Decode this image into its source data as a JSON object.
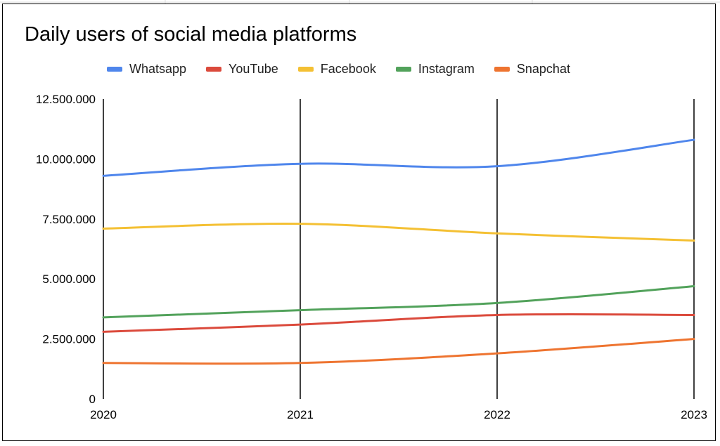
{
  "chart_data": {
    "type": "line",
    "title": "Daily users of social media platforms",
    "categories": [
      "2020",
      "2021",
      "2022",
      "2023"
    ],
    "ylim": [
      0,
      12500000
    ],
    "yticks": [
      0,
      2500000,
      5000000,
      7500000,
      10000000,
      12500000
    ],
    "ytick_labels": [
      "0",
      "2.500.000",
      "5.000.000",
      "7.500.000",
      "10.000.000",
      "12.500.000"
    ],
    "legend_position": "top",
    "smooth": true,
    "series": [
      {
        "name": "Whatsapp",
        "color": "#4f86ec",
        "values": [
          9300000,
          9800000,
          9700000,
          10800000
        ]
      },
      {
        "name": "YouTube",
        "color": "#db4a3c",
        "values": [
          2800000,
          3100000,
          3500000,
          3500000
        ]
      },
      {
        "name": "Facebook",
        "color": "#f4c033",
        "values": [
          7100000,
          7300000,
          6900000,
          6600000
        ]
      },
      {
        "name": "Instagram",
        "color": "#52a25b",
        "values": [
          3400000,
          3700000,
          4000000,
          4700000
        ]
      },
      {
        "name": "Snapchat",
        "color": "#ee7430",
        "values": [
          1500000,
          1500000,
          1900000,
          2500000
        ]
      }
    ]
  }
}
